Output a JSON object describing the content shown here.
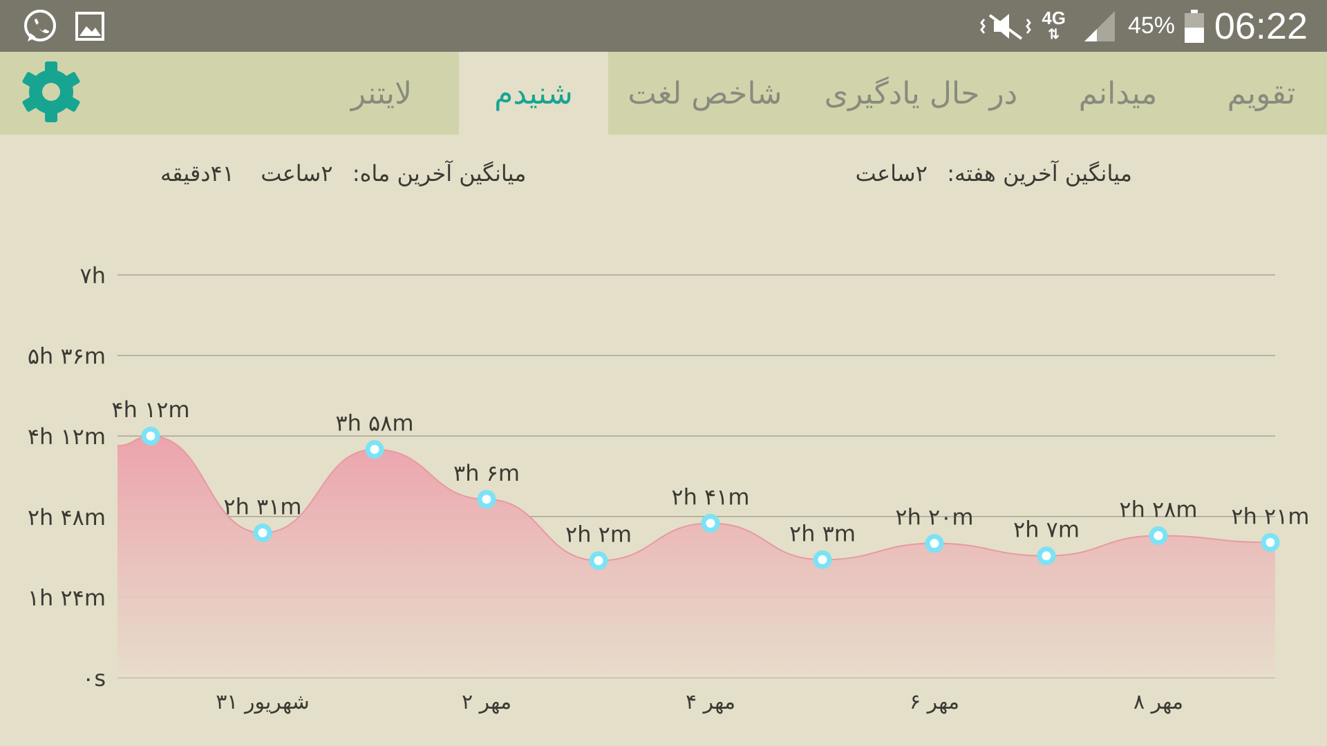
{
  "status_bar": {
    "time": "06:22",
    "battery_percent": "45%",
    "network": "4G",
    "icons": [
      "whatsapp-icon",
      "gallery-icon",
      "mute-icon",
      "network-4g-icon",
      "signal-icon",
      "battery-icon"
    ]
  },
  "tabs": [
    {
      "label": "تقویم",
      "active": false
    },
    {
      "label": "میدانم",
      "active": false
    },
    {
      "label": "در حال یادگیری",
      "active": false
    },
    {
      "label": "شاخص لغت",
      "active": false
    },
    {
      "label": "شنیدم",
      "active": true
    },
    {
      "label": "لایتنر",
      "active": false
    }
  ],
  "settings_icon": "gear-icon",
  "averages": {
    "week_label": "میانگین آخرین هفته:",
    "week_value": "۲ساعت",
    "month_label": "میانگین آخرین ماه:",
    "month_value": "۲ساعت",
    "month_value_extra": "۴۱دقیقه"
  },
  "colors": {
    "accent": "#17a592",
    "tab_bar": "#d1d4ab",
    "status_bar": "#79776a",
    "background": "#e4dfc8",
    "area_fill": "#eba6ad",
    "marker": "#7ae3f5"
  },
  "chart_data": {
    "type": "area",
    "y_unit": "minutes",
    "ylim": [
      0,
      420
    ],
    "y_ticks": [
      {
        "value": 0,
        "label": "۰s"
      },
      {
        "value": 84,
        "label": "۱h ۲۴m"
      },
      {
        "value": 168,
        "label": "۲h ۴۸m"
      },
      {
        "value": 252,
        "label": "۴h ۱۲m"
      },
      {
        "value": 336,
        "label": "۵h ۳۶m"
      },
      {
        "value": 420,
        "label": "۷h"
      }
    ],
    "x_tick_labels": [
      {
        "index": 1,
        "label": "۳۱ شهریور"
      },
      {
        "index": 3,
        "label": "۲ مهر"
      },
      {
        "index": 5,
        "label": "۴ مهر"
      },
      {
        "index": 7,
        "label": "۶ مهر"
      },
      {
        "index": 9,
        "label": "۸ مهر"
      }
    ],
    "values": [
      252,
      151,
      238,
      186,
      122,
      161,
      123,
      140,
      127,
      148,
      141
    ],
    "data_labels": [
      "۴h ۱۲m",
      "۲h ۳۱m",
      "۳h ۵۸m",
      "۳h ۶m",
      "۲h ۲m",
      "۲h ۴۱m",
      "۲h ۳m",
      "۲h ۲۰m",
      "۲h ۷m",
      "۲h ۲۸m",
      "۲h ۲۱m"
    ],
    "grid": true,
    "legend": "none"
  }
}
